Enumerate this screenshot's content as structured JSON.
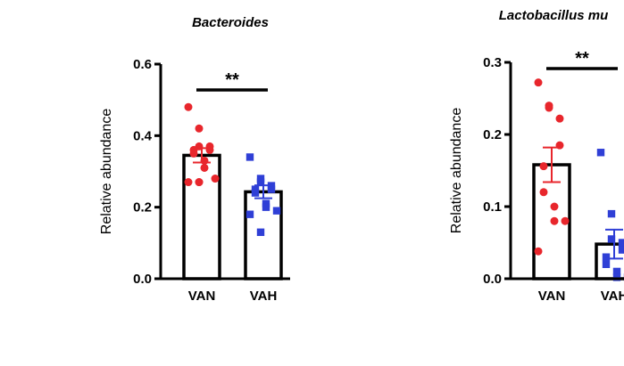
{
  "chart_data": [
    {
      "type": "bar",
      "title": "Bacteroides",
      "xlabel": "",
      "ylabel": "Relative abundance",
      "ylim": [
        0,
        0.6
      ],
      "yticks": [
        "0.0",
        "0.2",
        "0.4",
        "0.6"
      ],
      "categories": [
        "VAN",
        "VAH"
      ],
      "values": [
        0.345,
        0.243
      ],
      "sem": [
        0.02,
        0.018
      ],
      "colors": [
        "#e8262c",
        "#2f3fd6"
      ],
      "markers": [
        "circle",
        "square"
      ],
      "points": [
        [
          0.48,
          0.42,
          0.37,
          0.37,
          0.36,
          0.36,
          0.35,
          0.33,
          0.31,
          0.28,
          0.27,
          0.27,
          0.27
        ],
        [
          0.34,
          0.28,
          0.27,
          0.26,
          0.25,
          0.25,
          0.24,
          0.21,
          0.2,
          0.19,
          0.18,
          0.13
        ]
      ],
      "significance": "**"
    },
    {
      "type": "bar",
      "title": "Lactobacillus mu",
      "xlabel": "",
      "ylabel": "Relative abundance",
      "ylim": [
        0,
        0.3
      ],
      "yticks": [
        "0.0",
        "0.1",
        "0.2",
        "0.3"
      ],
      "categories": [
        "VAN",
        "VAH"
      ],
      "values": [
        0.158,
        0.048
      ],
      "sem": [
        0.024,
        0.02
      ],
      "colors": [
        "#e8262c",
        "#2f3fd6"
      ],
      "markers": [
        "circle",
        "square"
      ],
      "points": [
        [
          0.272,
          0.24,
          0.237,
          0.222,
          0.185,
          0.156,
          0.12,
          0.1,
          0.08,
          0.08,
          0.038
        ],
        [
          0.175,
          0.09,
          0.055,
          0.05,
          0.04,
          0.03,
          0.02,
          0.01,
          0.002,
          0.002
        ]
      ],
      "significance": "**"
    }
  ]
}
